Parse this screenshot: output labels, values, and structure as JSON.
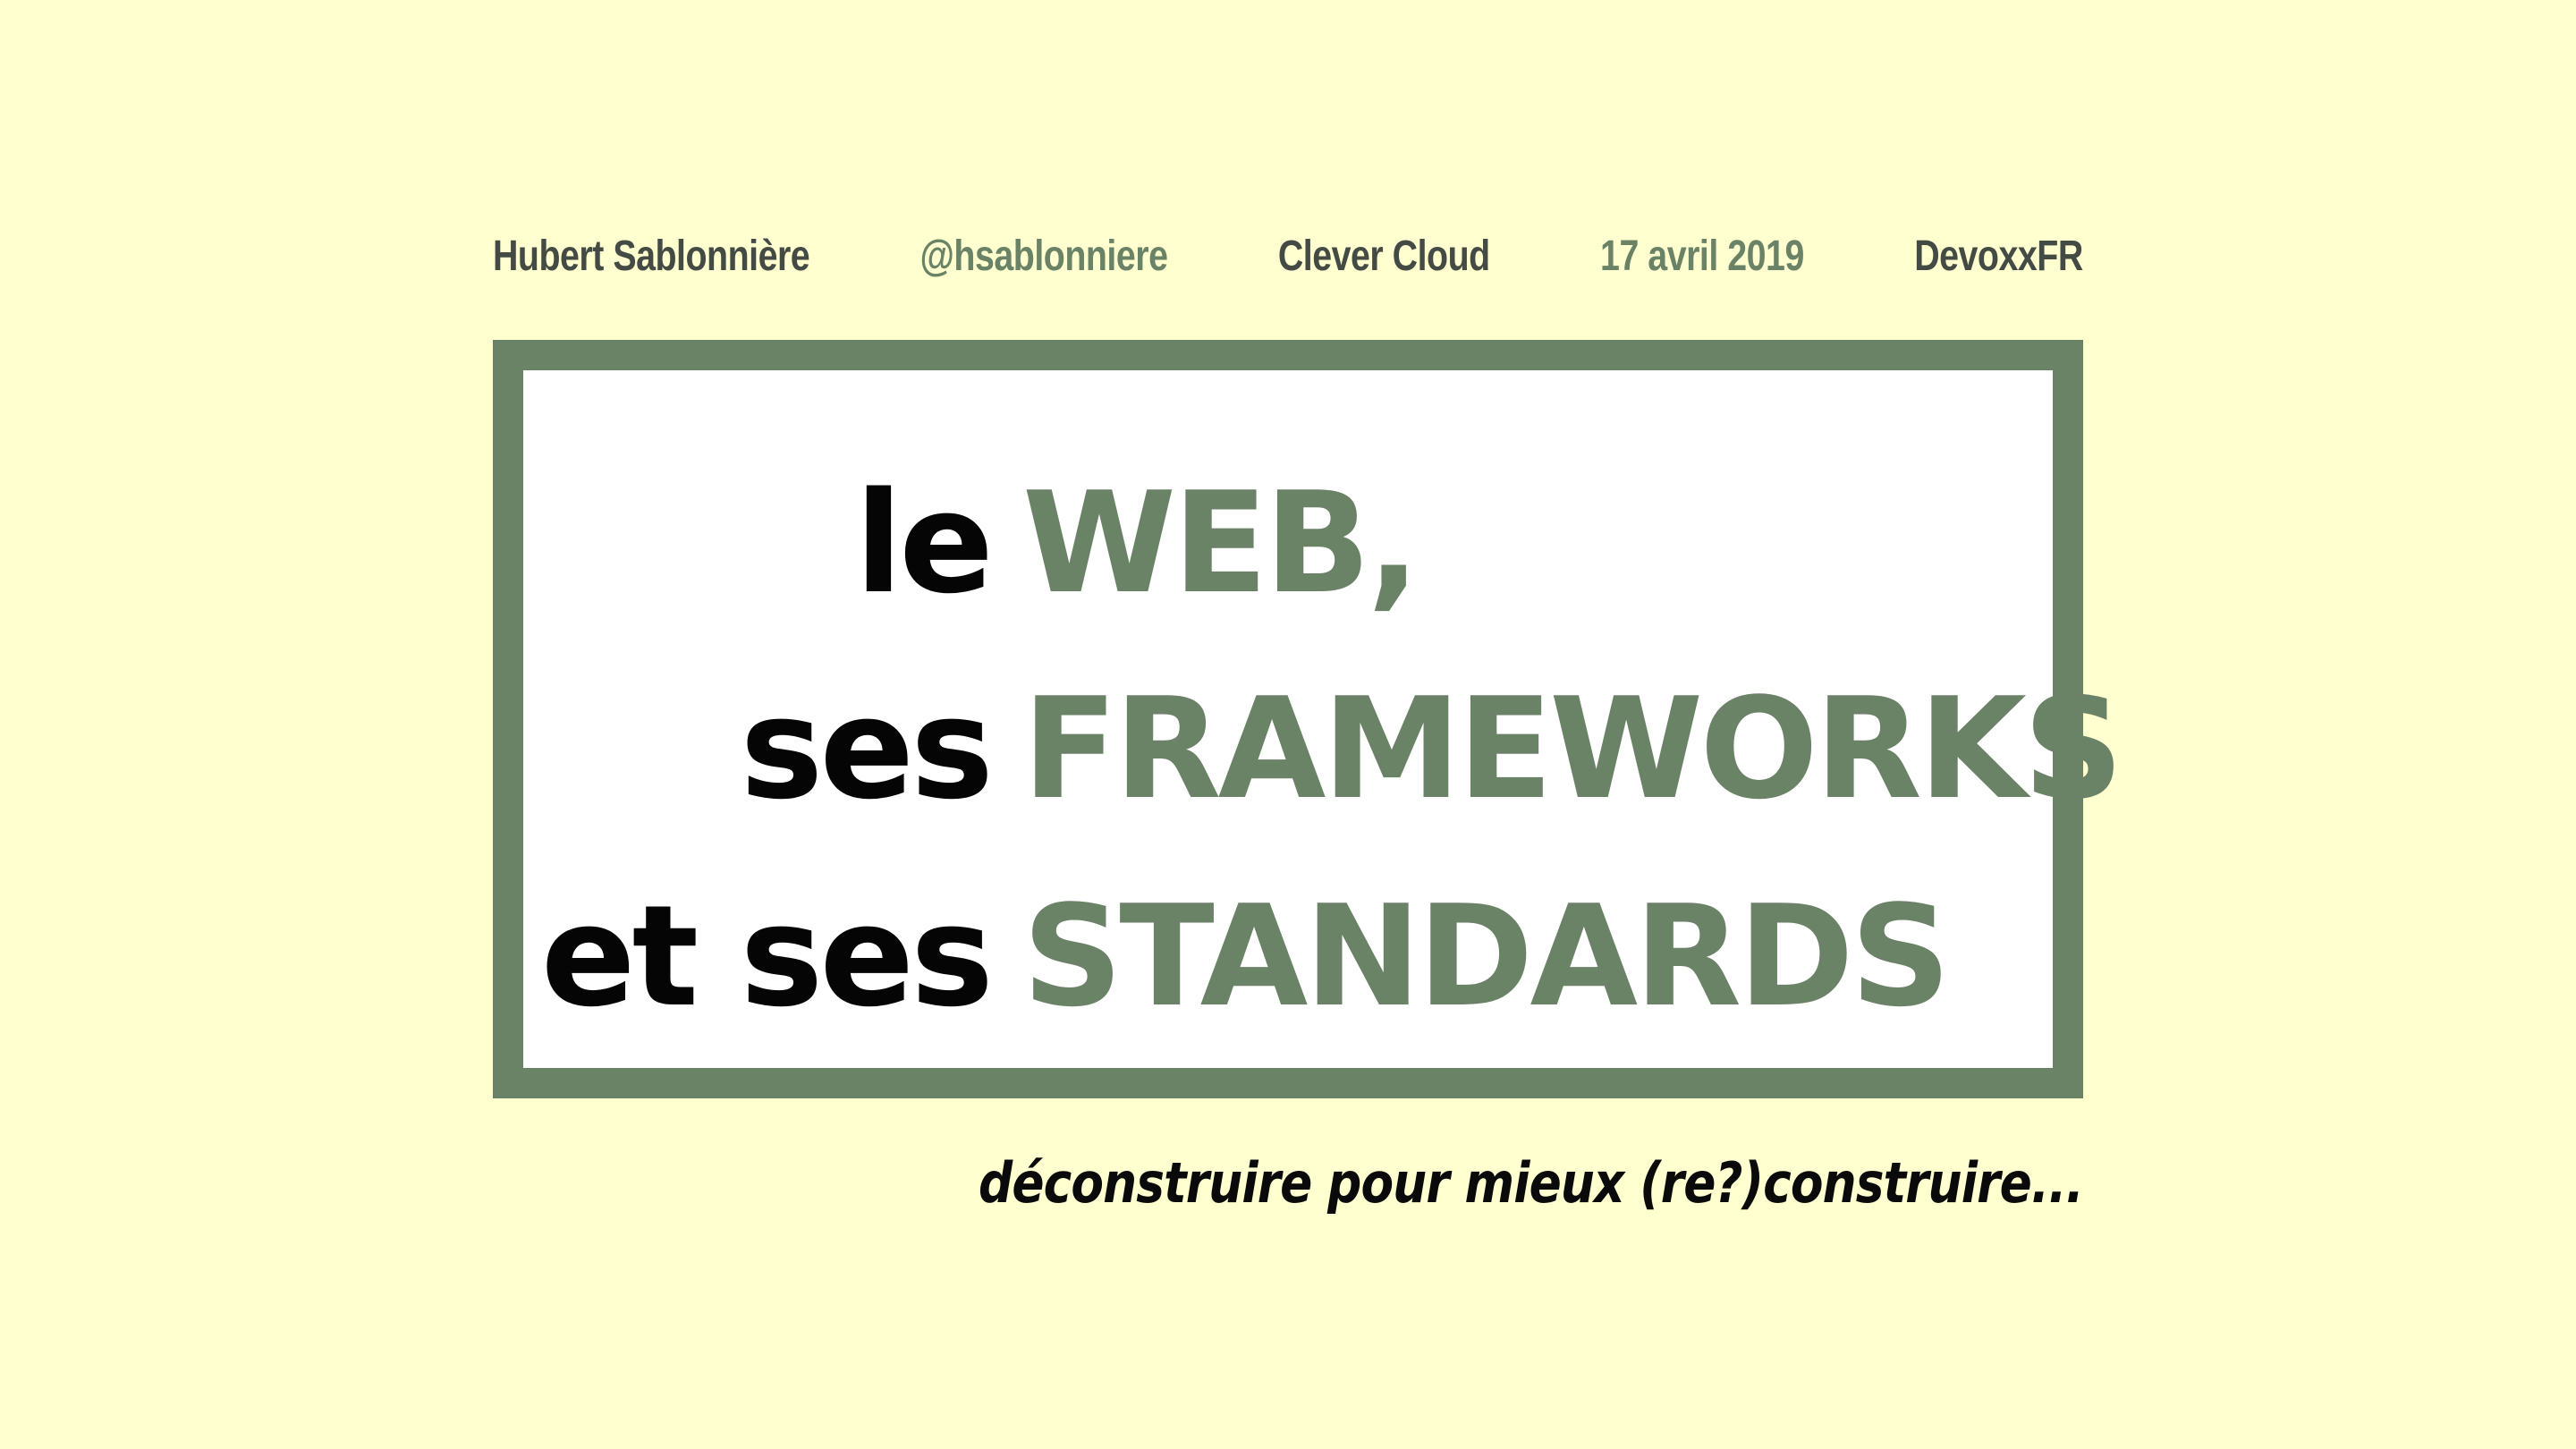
{
  "header": {
    "author": "Hubert Sablonnière",
    "handle": "@hsablonniere",
    "company": "Clever Cloud",
    "date": "17 avril 2019",
    "event": "DevoxxFR"
  },
  "title": {
    "line1": {
      "lead": "le",
      "key": "WEB,"
    },
    "line2": {
      "lead": "ses",
      "key": "FRAMEWORKS"
    },
    "line3": {
      "lead": "et ses",
      "key": "STANDARDS"
    }
  },
  "tagline": "déconstruire pour mieux (re?)construire...",
  "colors": {
    "background": "#ffffd0",
    "accent": "#6a8266",
    "text_dark": "#050505",
    "meta_dark": "#444a44"
  }
}
